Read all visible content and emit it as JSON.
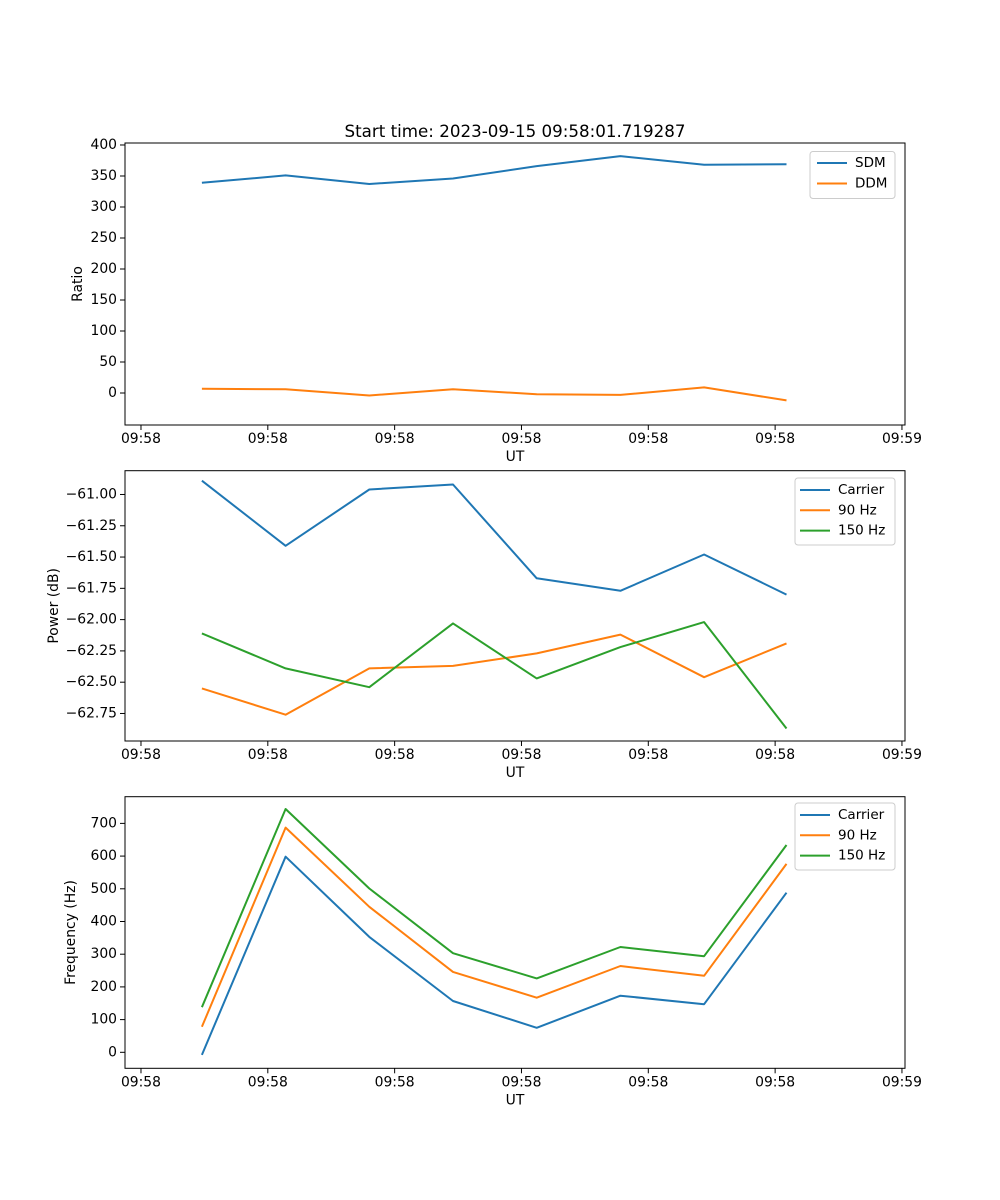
{
  "figure": {
    "title": "Start time: 2023-09-15 09:58:01.719287"
  },
  "chart_data": [
    {
      "id": "ratio",
      "type": "line",
      "title": "Start time: 2023-09-15 09:58:01.719287",
      "xlabel": "UT",
      "ylabel": "Ratio",
      "x": [
        4.8,
        11.4,
        18.0,
        24.6,
        31.2,
        37.8,
        44.4,
        50.9
      ],
      "xlim": [
        -1.26,
        60.24
      ],
      "ylim": [
        -51.6,
        403.2
      ],
      "xticks": [
        0,
        10,
        20,
        30,
        40,
        50,
        60
      ],
      "xtick_labels": [
        "09:58",
        "09:58",
        "09:58",
        "09:58",
        "09:58",
        "09:58",
        "09:59"
      ],
      "yticks": [
        0,
        50,
        100,
        150,
        200,
        250,
        300,
        350,
        400
      ],
      "ytick_labels": [
        "0",
        "50",
        "100",
        "150",
        "200",
        "250",
        "300",
        "350",
        "400"
      ],
      "grid": false,
      "legend_position": "upper right",
      "series": [
        {
          "name": "SDM",
          "color": "#1f77b4",
          "values": [
            339,
            351,
            337,
            346,
            366,
            382,
            368,
            369
          ]
        },
        {
          "name": "DDM",
          "color": "#ff7f0e",
          "values": [
            7,
            6,
            -4,
            6,
            -2,
            -3,
            9,
            -12
          ]
        }
      ]
    },
    {
      "id": "power",
      "type": "line",
      "title": "",
      "xlabel": "UT",
      "ylabel": "Power (dB)",
      "x": [
        4.8,
        11.4,
        18.0,
        24.6,
        31.2,
        37.8,
        44.4,
        50.9
      ],
      "xlim": [
        -1.26,
        60.24
      ],
      "ylim": [
        -62.97,
        -60.81
      ],
      "xticks": [
        0,
        10,
        20,
        30,
        40,
        50,
        60
      ],
      "xtick_labels": [
        "09:58",
        "09:58",
        "09:58",
        "09:58",
        "09:58",
        "09:58",
        "09:59"
      ],
      "yticks": [
        -61.0,
        -61.25,
        -61.5,
        -61.75,
        -62.0,
        -62.25,
        -62.5,
        -62.75
      ],
      "ytick_labels": [
        "−61.00",
        "−61.25",
        "−61.50",
        "−61.75",
        "−62.00",
        "−62.25",
        "−62.50",
        "−62.75"
      ],
      "grid": false,
      "legend_position": "upper right",
      "series": [
        {
          "name": "Carrier",
          "color": "#1f77b4",
          "values": [
            -60.89,
            -61.41,
            -60.96,
            -60.92,
            -61.67,
            -61.77,
            -61.48,
            -61.8
          ]
        },
        {
          "name": "90 Hz",
          "color": "#ff7f0e",
          "values": [
            -62.55,
            -62.76,
            -62.39,
            -62.37,
            -62.27,
            -62.12,
            -62.46,
            -62.19
          ]
        },
        {
          "name": "150 Hz",
          "color": "#2ca02c",
          "values": [
            -62.11,
            -62.39,
            -62.54,
            -62.03,
            -62.47,
            -62.22,
            -62.02,
            -62.87
          ]
        }
      ]
    },
    {
      "id": "frequency",
      "type": "line",
      "title": "",
      "xlabel": "UT",
      "ylabel": "Frequency (Hz)",
      "x": [
        4.8,
        11.4,
        18.0,
        24.6,
        31.2,
        37.8,
        44.4,
        50.9
      ],
      "xlim": [
        -1.26,
        60.24
      ],
      "ylim": [
        -48.9,
        781.6
      ],
      "xticks": [
        0,
        10,
        20,
        30,
        40,
        50,
        60
      ],
      "xtick_labels": [
        "09:58",
        "09:58",
        "09:58",
        "09:58",
        "09:58",
        "09:58",
        "09:59"
      ],
      "yticks": [
        0,
        100,
        200,
        300,
        400,
        500,
        600,
        700
      ],
      "ytick_labels": [
        "0",
        "100",
        "200",
        "300",
        "400",
        "500",
        "600",
        "700"
      ],
      "grid": false,
      "legend_position": "upper right",
      "series": [
        {
          "name": "Carrier",
          "color": "#1f77b4",
          "values": [
            -8,
            598,
            353,
            157,
            75,
            173,
            147,
            488
          ]
        },
        {
          "name": "90 Hz",
          "color": "#ff7f0e",
          "values": [
            78,
            687,
            445,
            246,
            167,
            264,
            234,
            576
          ]
        },
        {
          "name": "150 Hz",
          "color": "#2ca02c",
          "values": [
            138,
            744,
            501,
            303,
            226,
            322,
            294,
            634
          ]
        }
      ]
    }
  ]
}
